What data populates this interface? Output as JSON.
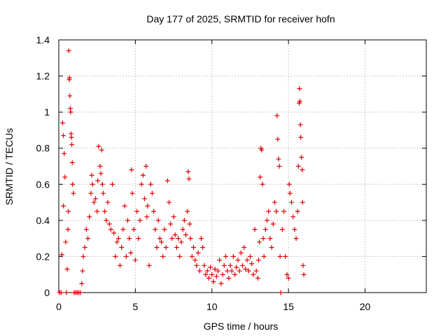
{
  "chart_data": {
    "type": "scatter",
    "title": "Day 177 of 2025, SRMTID for receiver hofn",
    "xlabel": "GPS time / hours",
    "ylabel": "SRMTID / TECUs",
    "xlim": [
      0,
      24
    ],
    "ylim": [
      0,
      1.4
    ],
    "xticks": [
      0,
      5,
      10,
      15,
      20
    ],
    "yticks": [
      0,
      0.2,
      0.4,
      0.6,
      0.8,
      1,
      1.2,
      1.4
    ],
    "ytick_labels": [
      "0",
      "0.2",
      "0.4",
      "0.6",
      "0.8",
      "1",
      "1.2",
      "1.4"
    ],
    "grid": true,
    "marker": "+",
    "color": "#e00000",
    "series": [
      {
        "name": "SRMTID",
        "points": [
          [
            0.05,
            0.0
          ],
          [
            0.15,
            0.0
          ],
          [
            0.2,
            0.21
          ],
          [
            0.25,
            0.94
          ],
          [
            0.3,
            0.87
          ],
          [
            0.3,
            0.48
          ],
          [
            0.35,
            0.77
          ],
          [
            0.4,
            0.64
          ],
          [
            0.45,
            0.28
          ],
          [
            0.5,
            0.0
          ],
          [
            0.55,
            0.13
          ],
          [
            0.6,
            0.35
          ],
          [
            0.62,
            0.45
          ],
          [
            0.65,
            1.34
          ],
          [
            0.68,
            1.18
          ],
          [
            0.7,
            1.19
          ],
          [
            0.72,
            1.09
          ],
          [
            0.75,
            1.02
          ],
          [
            0.78,
            1.0
          ],
          [
            0.8,
            0.88
          ],
          [
            0.82,
            0.86
          ],
          [
            0.85,
            0.82
          ],
          [
            0.88,
            0.72
          ],
          [
            0.9,
            0.6
          ],
          [
            0.95,
            0.55
          ],
          [
            1.0,
            0.0
          ],
          [
            1.1,
            0.0
          ],
          [
            1.2,
            0.0
          ],
          [
            1.3,
            0.0
          ],
          [
            1.4,
            0.0
          ],
          [
            1.5,
            0.05
          ],
          [
            1.55,
            0.12
          ],
          [
            1.6,
            0.2
          ],
          [
            1.7,
            0.25
          ],
          [
            1.8,
            0.35
          ],
          [
            1.9,
            0.3
          ],
          [
            2.0,
            0.42
          ],
          [
            2.1,
            0.55
          ],
          [
            2.15,
            0.65
          ],
          [
            2.2,
            0.6
          ],
          [
            2.3,
            0.5
          ],
          [
            2.4,
            0.52
          ],
          [
            2.5,
            0.45
          ],
          [
            2.55,
            0.62
          ],
          [
            2.6,
            0.81
          ],
          [
            2.7,
            0.7
          ],
          [
            2.75,
            0.66
          ],
          [
            2.8,
            0.79
          ],
          [
            2.85,
            0.6
          ],
          [
            2.9,
            0.55
          ],
          [
            3.0,
            0.45
          ],
          [
            3.1,
            0.4
          ],
          [
            3.2,
            0.5
          ],
          [
            3.3,
            0.38
          ],
          [
            3.4,
            0.35
          ],
          [
            3.5,
            0.6
          ],
          [
            3.6,
            0.33
          ],
          [
            3.7,
            0.2
          ],
          [
            3.8,
            0.28
          ],
          [
            3.9,
            0.3
          ],
          [
            4.0,
            0.15
          ],
          [
            4.1,
            0.25
          ],
          [
            4.2,
            0.35
          ],
          [
            4.3,
            0.48
          ],
          [
            4.4,
            0.2
          ],
          [
            4.5,
            0.4
          ],
          [
            4.6,
            0.3
          ],
          [
            4.7,
            0.22
          ],
          [
            4.75,
            0.68
          ],
          [
            4.8,
            0.55
          ],
          [
            4.9,
            0.35
          ],
          [
            5.0,
            0.18
          ],
          [
            5.1,
            0.45
          ],
          [
            5.2,
            0.3
          ],
          [
            5.3,
            0.4
          ],
          [
            5.4,
            0.6
          ],
          [
            5.5,
            0.65
          ],
          [
            5.6,
            0.52
          ],
          [
            5.7,
            0.7
          ],
          [
            5.75,
            0.42
          ],
          [
            5.8,
            0.48
          ],
          [
            5.9,
            0.15
          ],
          [
            6.0,
            0.6
          ],
          [
            6.1,
            0.55
          ],
          [
            6.2,
            0.45
          ],
          [
            6.3,
            0.35
          ],
          [
            6.4,
            0.25
          ],
          [
            6.5,
            0.4
          ],
          [
            6.6,
            0.3
          ],
          [
            6.7,
            0.28
          ],
          [
            6.8,
            0.2
          ],
          [
            6.9,
            0.35
          ],
          [
            7.0,
            0.25
          ],
          [
            7.1,
            0.62
          ],
          [
            7.2,
            0.5
          ],
          [
            7.3,
            0.38
          ],
          [
            7.4,
            0.3
          ],
          [
            7.5,
            0.42
          ],
          [
            7.6,
            0.32
          ],
          [
            7.7,
            0.25
          ],
          [
            7.8,
            0.3
          ],
          [
            7.9,
            0.2
          ],
          [
            8.0,
            0.28
          ],
          [
            8.1,
            0.35
          ],
          [
            8.2,
            0.4
          ],
          [
            8.3,
            0.32
          ],
          [
            8.4,
            0.45
          ],
          [
            8.45,
            0.67
          ],
          [
            8.5,
            0.63
          ],
          [
            8.55,
            0.38
          ],
          [
            8.6,
            0.3
          ],
          [
            8.7,
            0.2
          ],
          [
            8.8,
            0.25
          ],
          [
            8.9,
            0.18
          ],
          [
            9.0,
            0.15
          ],
          [
            9.1,
            0.22
          ],
          [
            9.2,
            0.12
          ],
          [
            9.3,
            0.3
          ],
          [
            9.4,
            0.25
          ],
          [
            9.5,
            0.15
          ],
          [
            9.6,
            0.1
          ],
          [
            9.7,
            0.12
          ],
          [
            9.8,
            0.08
          ],
          [
            9.9,
            0.14
          ],
          [
            10.0,
            0.1
          ],
          [
            10.1,
            0.06
          ],
          [
            10.2,
            0.13
          ],
          [
            10.3,
            0.09
          ],
          [
            10.4,
            0.12
          ],
          [
            10.5,
            0.18
          ],
          [
            10.6,
            0.05
          ],
          [
            10.7,
            0.1
          ],
          [
            10.8,
            0.15
          ],
          [
            10.9,
            0.2
          ],
          [
            11.0,
            0.12
          ],
          [
            11.1,
            0.08
          ],
          [
            11.2,
            0.15
          ],
          [
            11.3,
            0.12
          ],
          [
            11.4,
            0.2
          ],
          [
            11.5,
            0.1
          ],
          [
            11.6,
            0.14
          ],
          [
            11.7,
            0.18
          ],
          [
            11.8,
            0.12
          ],
          [
            11.9,
            0.22
          ],
          [
            12.0,
            0.15
          ],
          [
            12.1,
            0.25
          ],
          [
            12.2,
            0.13
          ],
          [
            12.3,
            0.18
          ],
          [
            12.4,
            0.12
          ],
          [
            12.5,
            0.2
          ],
          [
            12.6,
            0.16
          ],
          [
            12.7,
            0.1
          ],
          [
            12.8,
            0.35
          ],
          [
            12.9,
            0.12
          ],
          [
            13.0,
            0.08
          ],
          [
            13.05,
            0.18
          ],
          [
            13.1,
            0.28
          ],
          [
            13.15,
            0.64
          ],
          [
            13.2,
            0.8
          ],
          [
            13.25,
            0.79
          ],
          [
            13.3,
            0.6
          ],
          [
            13.35,
            0.3
          ],
          [
            13.4,
            0.2
          ],
          [
            13.5,
            0.35
          ],
          [
            13.6,
            0.4
          ],
          [
            13.7,
            0.45
          ],
          [
            13.8,
            0.3
          ],
          [
            13.9,
            0.25
          ],
          [
            14.0,
            0.38
          ],
          [
            14.1,
            0.5
          ],
          [
            14.2,
            0.45
          ],
          [
            14.25,
            0.98
          ],
          [
            14.3,
            0.85
          ],
          [
            14.35,
            0.74
          ],
          [
            14.4,
            0.7
          ],
          [
            14.45,
            0.2
          ],
          [
            14.5,
            0.0
          ],
          [
            14.6,
            0.35
          ],
          [
            14.7,
            0.45
          ],
          [
            14.8,
            0.2
          ],
          [
            14.9,
            0.1
          ],
          [
            15.0,
            0.08
          ],
          [
            15.05,
            0.6
          ],
          [
            15.1,
            0.55
          ],
          [
            15.2,
            0.5
          ],
          [
            15.3,
            0.42
          ],
          [
            15.4,
            0.35
          ],
          [
            15.5,
            0.3
          ],
          [
            15.6,
            0.45
          ],
          [
            15.65,
            0.7
          ],
          [
            15.7,
            1.05
          ],
          [
            15.72,
            1.13
          ],
          [
            15.75,
            1.06
          ],
          [
            15.78,
            0.93
          ],
          [
            15.8,
            0.86
          ],
          [
            15.85,
            0.75
          ],
          [
            15.9,
            0.68
          ],
          [
            15.92,
            0.5
          ],
          [
            15.95,
            0.15
          ],
          [
            16.0,
            0.1
          ]
        ]
      }
    ]
  }
}
